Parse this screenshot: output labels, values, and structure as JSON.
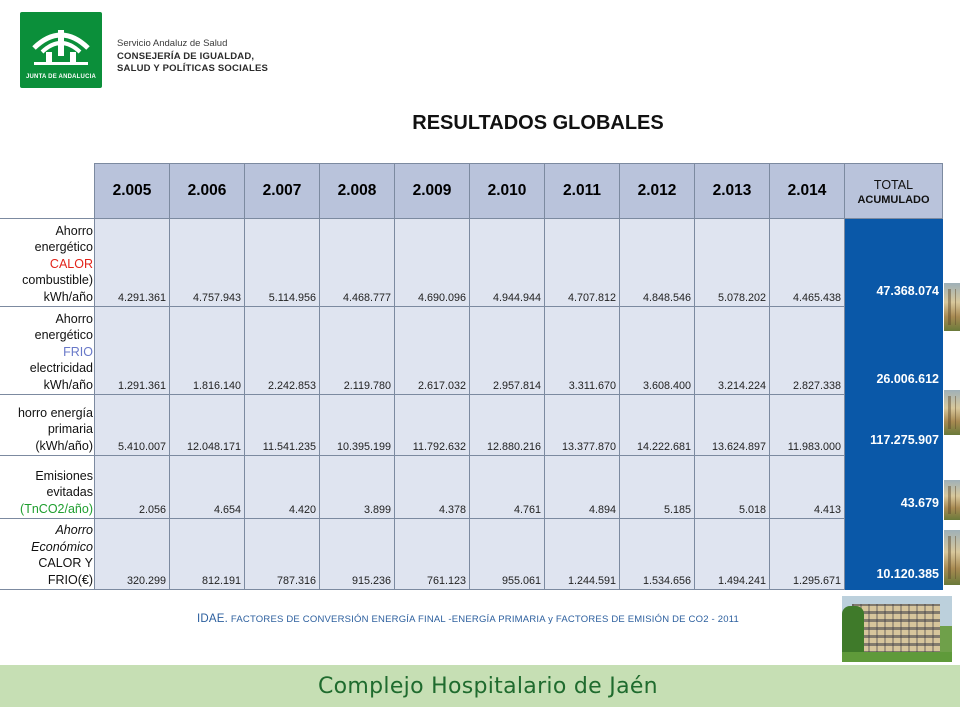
{
  "header": {
    "logo_text": "JUNTA DE ANDALUCIA",
    "org_line1": "Servicio Andaluz de Salud",
    "org_line2": "CONSEJERÍA DE IGUALDAD,",
    "org_line3": "SALUD Y POLÍTICAS SOCIALES",
    "brand_color": "#0b8f3a"
  },
  "title": "RESULTADOS GLOBALES",
  "table": {
    "years": [
      "2.005",
      "2.006",
      "2.007",
      "2.008",
      "2.009",
      "2.010",
      "2.011",
      "2.012",
      "2.013",
      "2.014"
    ],
    "total_header_line1": "TOTAL",
    "total_header_line2": "ACUMULADO",
    "rows": [
      {
        "label": [
          "Ahorro",
          "energético",
          "CALOR",
          "combustible)",
          "kWh/año"
        ],
        "values": [
          "4.291.361",
          "4.757.943",
          "5.114.956",
          "4.468.777",
          "4.690.096",
          "4.944.944",
          "4.707.812",
          "4.848.546",
          "5.078.202",
          "4.465.438"
        ],
        "total": "47.368.074"
      },
      {
        "label": [
          "Ahorro",
          "energético",
          "FRIO",
          "electricidad",
          "kWh/año"
        ],
        "values": [
          "1.291.361",
          "1.816.140",
          "2.242.853",
          "2.119.780",
          "2.617.032",
          "2.957.814",
          "3.311.670",
          "3.608.400",
          "3.214.224",
          "2.827.338"
        ],
        "total": "26.006.612"
      },
      {
        "label": [
          "horro energía",
          "primaria",
          "(kWh/año)"
        ],
        "values": [
          "5.410.007",
          "12.048.171",
          "11.541.235",
          "10.395.199",
          "11.792.632",
          "12.880.216",
          "13.377.870",
          "14.222.681",
          "13.624.897",
          "11.983.000"
        ],
        "total": "117.275.907"
      },
      {
        "label": [
          "Emisiones",
          "evitadas",
          "(TnCO2/año)"
        ],
        "values": [
          "2.056",
          "4.654",
          "4.420",
          "3.899",
          "4.378",
          "4.761",
          "4.894",
          "5.185",
          "5.018",
          "4.413"
        ],
        "total": "43.679"
      },
      {
        "label": [
          "Ahorro",
          "Económico",
          "CALOR Y",
          "FRIO(€)"
        ],
        "values": [
          "320.299",
          "812.191",
          "787.316",
          "915.236",
          "761.123",
          "955.061",
          "1.244.591",
          "1.534.656",
          "1.494.241",
          "1.295.671"
        ],
        "total": "10.120.385"
      }
    ],
    "colors": {
      "header_bg": "#b9c3db",
      "cell_bg": "#dfe4f0",
      "total_bg": "#0a58a8",
      "calor": "#e2231a",
      "frio": "#6878c8",
      "emisiones": "#1e9e2e"
    }
  },
  "footnote": {
    "prefix": "IDAE.",
    "text": "FACTORES DE CONVERSIÓN ENERGÍA FINAL -ENERGÍA PRIMARIA y FACTORES DE EMISIÓN DE CO2 - 2011"
  },
  "footer": {
    "text": "Complejo Hospitalario de Jaén",
    "bar_color": "#c6dfb4"
  }
}
